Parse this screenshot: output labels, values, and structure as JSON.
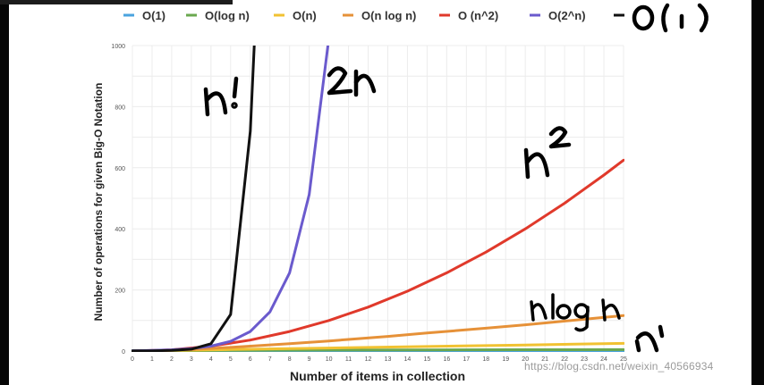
{
  "chart_data": {
    "type": "line",
    "title": "",
    "xlabel": "Number of items in collection",
    "ylabel": "Number of operations for given Big-O Notation",
    "xlim": [
      0,
      25
    ],
    "ylim": [
      0,
      1000
    ],
    "x_ticks": [
      "0",
      "1",
      "2",
      "3",
      "4",
      "5",
      "6",
      "7",
      "8",
      "9",
      "10",
      "11",
      "12",
      "13",
      "14",
      "15",
      "16",
      "17",
      "18",
      "19",
      "20",
      "21",
      "22",
      "23",
      "24",
      "25"
    ],
    "y_ticks": [
      "0",
      "200",
      "400",
      "600",
      "800",
      "1000"
    ],
    "grid": true,
    "legend_position": "top",
    "series": [
      {
        "name": "O(1)",
        "color": "#4aa3df",
        "x": [
          0,
          5,
          10,
          15,
          20,
          25
        ],
        "y": [
          1,
          1,
          1,
          1,
          1,
          1
        ]
      },
      {
        "name": "O(log n)",
        "color": "#6aa84f",
        "x": [
          1,
          5,
          10,
          15,
          20,
          25
        ],
        "y": [
          0,
          2.3,
          3.3,
          3.9,
          4.3,
          4.6
        ]
      },
      {
        "name": "O(n)",
        "color": "#f1c232",
        "x": [
          0,
          5,
          10,
          15,
          20,
          25
        ],
        "y": [
          0,
          5,
          10,
          15,
          20,
          25
        ]
      },
      {
        "name": "O(n log n)",
        "color": "#e69138",
        "x": [
          1,
          3,
          5,
          8,
          10,
          13,
          15,
          18,
          20,
          23,
          25
        ],
        "y": [
          0,
          5,
          12,
          24,
          33,
          48,
          59,
          75,
          86,
          104,
          116
        ]
      },
      {
        "name": "O (n^2)",
        "color": "#e0392b",
        "x": [
          0,
          2,
          4,
          6,
          8,
          10,
          12,
          14,
          16,
          18,
          20,
          22,
          24,
          25
        ],
        "y": [
          0,
          4,
          16,
          36,
          64,
          100,
          144,
          196,
          256,
          324,
          400,
          484,
          576,
          625
        ]
      },
      {
        "name": "O(2^n)",
        "color": "#6a5acd",
        "x": [
          0,
          1,
          2,
          3,
          4,
          5,
          6,
          7,
          8,
          9,
          10
        ],
        "y": [
          1,
          2,
          4,
          8,
          16,
          32,
          64,
          128,
          256,
          512,
          1024
        ]
      },
      {
        "name": "",
        "color": "#111111",
        "x": [
          0,
          1,
          2,
          3,
          4,
          5,
          6,
          6.2
        ],
        "y": [
          1,
          1,
          2,
          6,
          24,
          120,
          720,
          1000
        ]
      }
    ],
    "annotations": [
      {
        "text": "O(1)",
        "kind": "handwritten",
        "color": "#000000"
      },
      {
        "text": "n!",
        "kind": "handwritten",
        "color": "#000000"
      },
      {
        "text": "2n",
        "kind": "handwritten",
        "color": "#000000"
      },
      {
        "text": "n²",
        "kind": "handwritten",
        "color": "#000000"
      },
      {
        "text": "nlogn",
        "kind": "handwritten",
        "color": "#000000"
      },
      {
        "text": "n",
        "kind": "handwritten",
        "color": "#000000"
      }
    ]
  },
  "watermark": "https://blog.csdn.net/weixin_40566934"
}
